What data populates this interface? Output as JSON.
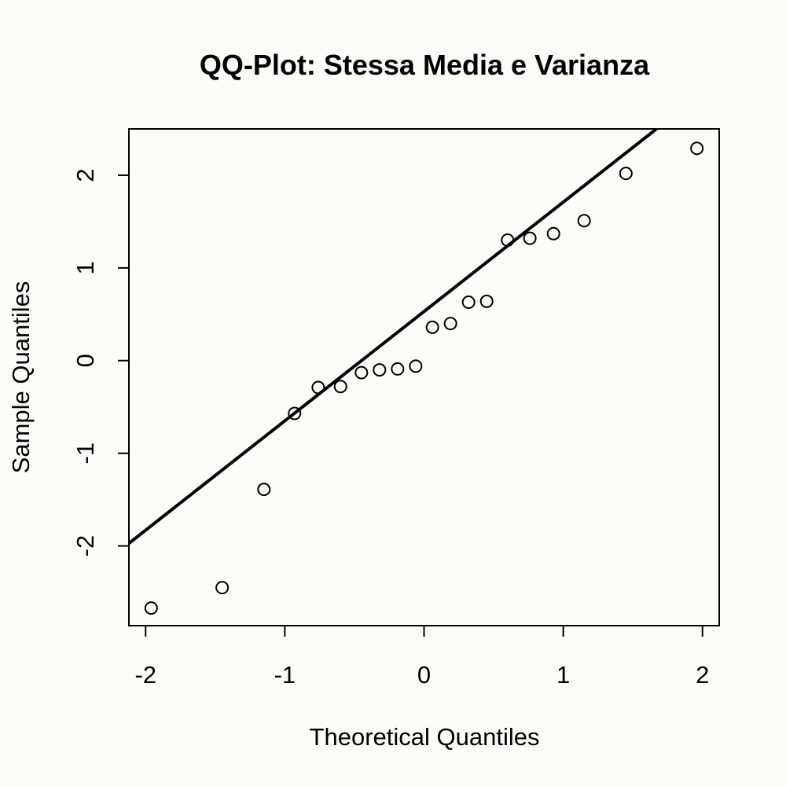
{
  "chart_data": {
    "type": "scatter",
    "title": "QQ-Plot: Stessa Media e Varianza",
    "xlabel": "Theoretical Quantiles",
    "ylabel": "Sample Quantiles",
    "xlim": [
      -2.12,
      2.12
    ],
    "ylim": [
      -2.86,
      2.5
    ],
    "x_ticks": [
      -2,
      -1,
      0,
      1,
      2
    ],
    "x_tick_labels": [
      "-2",
      "-1",
      "0",
      "1",
      "2"
    ],
    "y_ticks": [
      -2,
      -1,
      0,
      1,
      2
    ],
    "y_tick_labels": [
      "-2",
      "-1",
      "0",
      "1",
      "2"
    ],
    "grid": false,
    "points": [
      {
        "x": -1.96,
        "y": -2.67
      },
      {
        "x": -1.45,
        "y": -2.45
      },
      {
        "x": -1.15,
        "y": -1.39
      },
      {
        "x": -0.93,
        "y": -0.57
      },
      {
        "x": -0.76,
        "y": -0.29
      },
      {
        "x": -0.6,
        "y": -0.28
      },
      {
        "x": -0.45,
        "y": -0.13
      },
      {
        "x": -0.32,
        "y": -0.1
      },
      {
        "x": -0.19,
        "y": -0.09
      },
      {
        "x": -0.06,
        "y": -0.06
      },
      {
        "x": 0.06,
        "y": 0.36
      },
      {
        "x": 0.19,
        "y": 0.4
      },
      {
        "x": 0.32,
        "y": 0.63
      },
      {
        "x": 0.45,
        "y": 0.64
      },
      {
        "x": 0.6,
        "y": 1.3
      },
      {
        "x": 0.76,
        "y": 1.32
      },
      {
        "x": 0.93,
        "y": 1.37
      },
      {
        "x": 1.15,
        "y": 1.51
      },
      {
        "x": 1.45,
        "y": 2.02
      },
      {
        "x": 1.96,
        "y": 2.29
      }
    ],
    "reference_line": {
      "intercept": 0.53,
      "slope": 1.18
    }
  }
}
